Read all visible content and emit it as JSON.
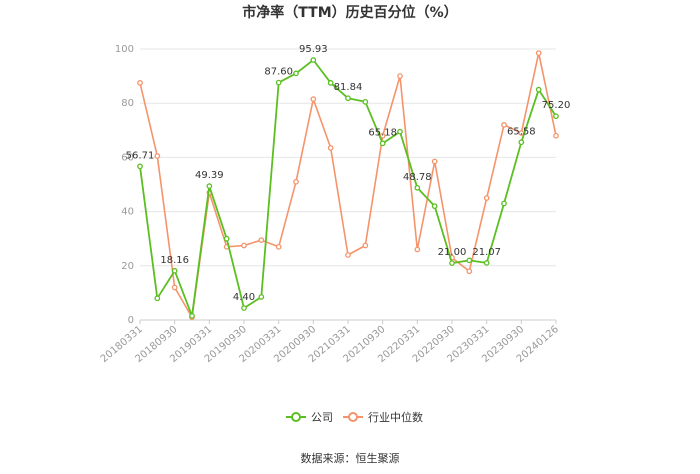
{
  "chart_data": {
    "type": "line",
    "title": "市净率（TTM）历史百分位（%）",
    "source": "数据来源：恒生聚源",
    "ylim": [
      0,
      100
    ],
    "yticks": [
      0,
      20,
      40,
      60,
      80,
      100
    ],
    "xtick_labels": [
      "20180331",
      "20180930",
      "20190331",
      "20190930",
      "20200331",
      "20200930",
      "20210331",
      "20210930",
      "20220331",
      "20220930",
      "20230331",
      "20230930",
      "20240126"
    ],
    "x": [
      "20180331",
      "20180630",
      "20180930",
      "20181231",
      "20190331",
      "20190630",
      "20190930",
      "20191231",
      "20200331",
      "20200630",
      "20200930",
      "20201231",
      "20210331",
      "20210630",
      "20210930",
      "20211231",
      "20220331",
      "20220630",
      "20220930",
      "20221231",
      "20230331",
      "20230630",
      "20230930",
      "20231231",
      "20240126"
    ],
    "grid": true,
    "legend": "bottom",
    "series": [
      {
        "name": "公司",
        "color": "#5bbf21",
        "values": [
          56.71,
          8.0,
          18.16,
          1.5,
          49.39,
          30.0,
          4.4,
          8.5,
          87.6,
          91.0,
          95.93,
          87.5,
          81.84,
          80.5,
          65.18,
          69.5,
          48.78,
          42.0,
          21.0,
          22.0,
          21.07,
          43.0,
          65.58,
          85.0,
          75.2
        ]
      },
      {
        "name": "行业中位数",
        "color": "#f5936b",
        "values": [
          87.5,
          60.5,
          12.0,
          1.0,
          47.0,
          27.0,
          27.5,
          29.5,
          27.0,
          51.0,
          81.5,
          63.5,
          24.0,
          27.5,
          68.0,
          90.0,
          26.0,
          58.5,
          23.0,
          18.0,
          45.0,
          72.0,
          69.0,
          98.5,
          68.0
        ]
      }
    ],
    "data_labels": [
      {
        "series": 0,
        "index": 0,
        "text": "56.71"
      },
      {
        "series": 0,
        "index": 2,
        "text": "18.16"
      },
      {
        "series": 0,
        "index": 4,
        "text": "49.39"
      },
      {
        "series": 0,
        "index": 6,
        "text": "4.40"
      },
      {
        "series": 0,
        "index": 8,
        "text": "87.60"
      },
      {
        "series": 0,
        "index": 10,
        "text": "95.93"
      },
      {
        "series": 0,
        "index": 12,
        "text": "81.84"
      },
      {
        "series": 0,
        "index": 14,
        "text": "65.18"
      },
      {
        "series": 0,
        "index": 16,
        "text": "48.78"
      },
      {
        "series": 0,
        "index": 18,
        "text": "21.00"
      },
      {
        "series": 0,
        "index": 20,
        "text": "21.07"
      },
      {
        "series": 0,
        "index": 22,
        "text": "65.58"
      },
      {
        "series": 0,
        "index": 24,
        "text": "75.20"
      }
    ]
  }
}
